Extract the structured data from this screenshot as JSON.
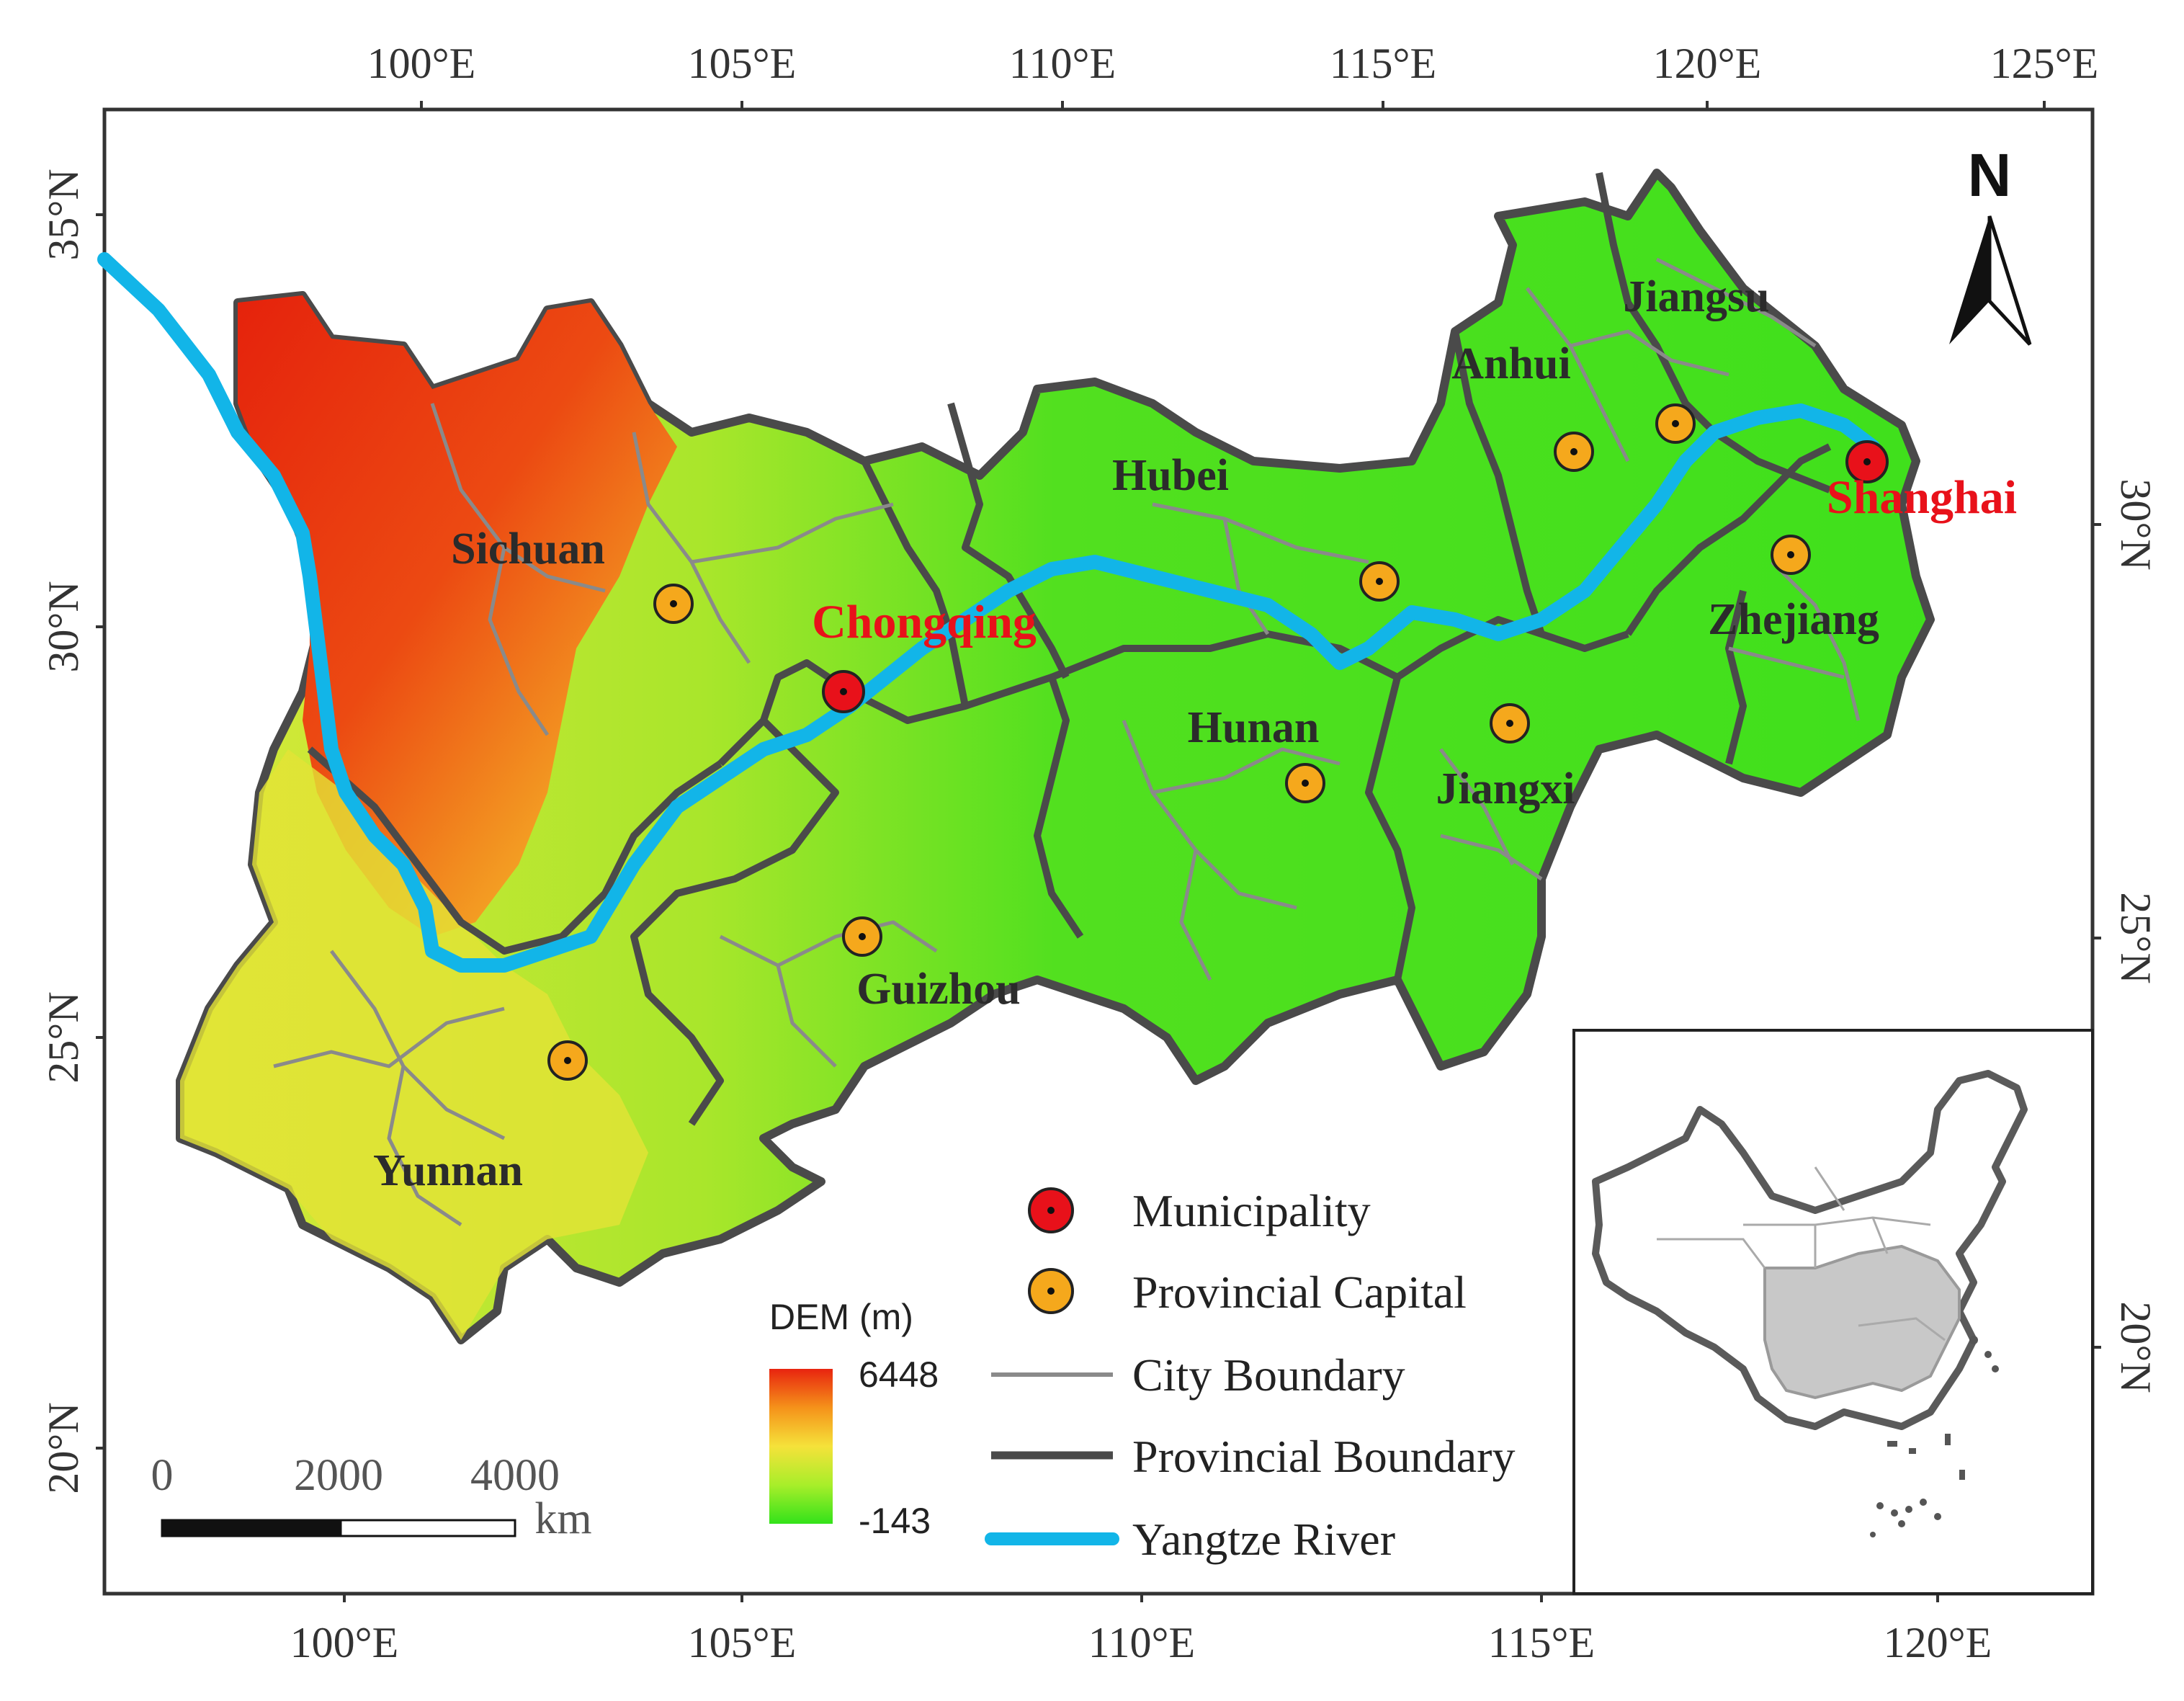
{
  "map": {
    "top_lon_ticks": [
      "100°E",
      "105°E",
      "110°E",
      "115°E",
      "120°E",
      "125°E"
    ],
    "bottom_lon_ticks": [
      "100°E",
      "105°E",
      "110°E",
      "115°E",
      "120°E"
    ],
    "left_lat_ticks": [
      "35°N",
      "30°N",
      "25°N",
      "20°N"
    ],
    "right_lat_ticks": [
      "30°N",
      "25°N",
      "20°N"
    ],
    "north_arrow": "N",
    "provinces": [
      "Sichuan",
      "Hubei",
      "Anhui",
      "Jiangsu",
      "Zhejiang",
      "Hunan",
      "Jiangxi",
      "Guizhou",
      "Yunnan"
    ],
    "municipalities": [
      "Chongqing",
      "Shanghai"
    ],
    "colors": {
      "dem_high": "#e8240f",
      "dem_mid": "#f5e23a",
      "dem_low": "#33e21a",
      "river": "#12b5e8",
      "municipality_marker": "#e8111a",
      "capital_marker": "#f5a81c",
      "city_boundary": "#8a8a8a",
      "provincial_boundary": "#4a4a4a"
    }
  },
  "scale_bar": {
    "labels": [
      "0",
      "2000",
      "4000"
    ],
    "unit": "km"
  },
  "dem_legend": {
    "title": "DEM (m)",
    "max": "6448",
    "min": "-143"
  },
  "legend": {
    "items": [
      {
        "symbol": "municipality-marker",
        "label": "Municipality"
      },
      {
        "symbol": "provincial-capital-marker",
        "label": "Provincial Capital"
      },
      {
        "symbol": "city-boundary-line",
        "label": "City Boundary"
      },
      {
        "symbol": "provincial-boundary-line",
        "label": "Provincial Boundary"
      },
      {
        "symbol": "yangtze-river-line",
        "label": "Yangtze River"
      }
    ]
  }
}
